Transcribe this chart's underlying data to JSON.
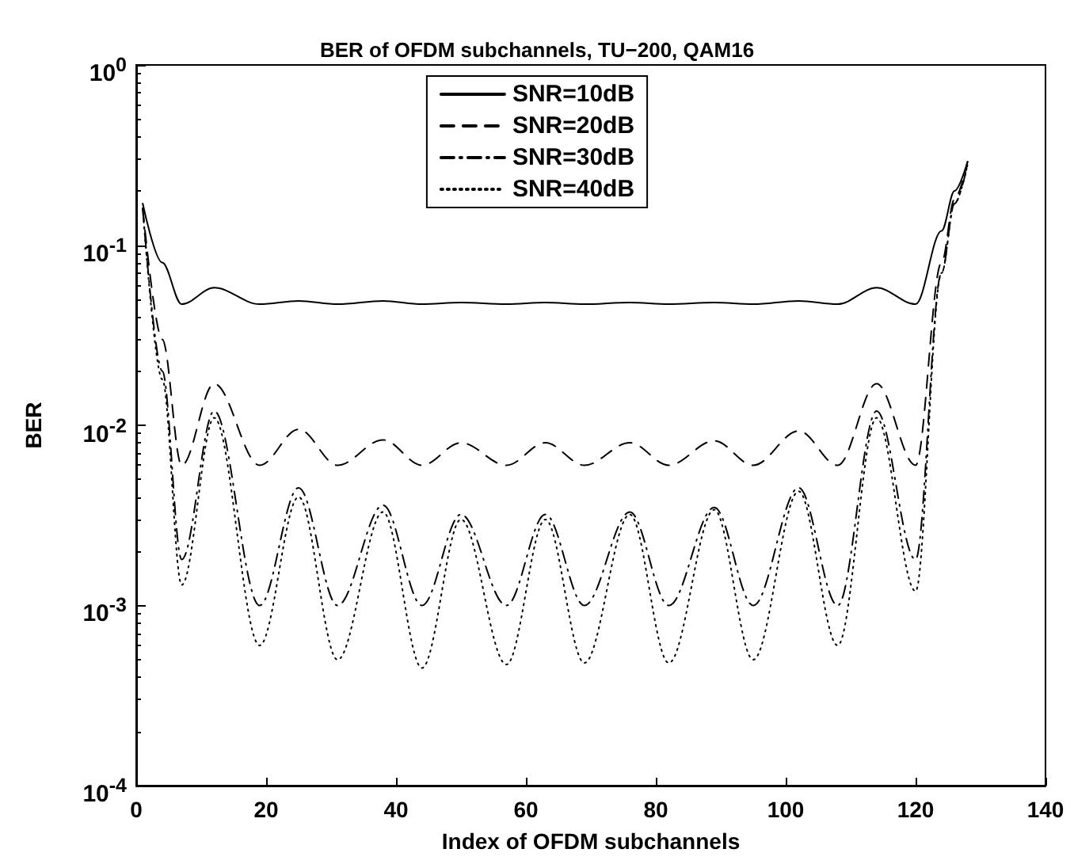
{
  "chart_data": {
    "type": "line",
    "title": "BER of OFDM subchannels, TU−200, QAM16",
    "xlabel": "Index of OFDM subchannels",
    "ylabel": "BER",
    "log": "y",
    "grid": false,
    "legend": "top",
    "marker": "none",
    "xlim": [
      0,
      140
    ],
    "xticks": [
      0,
      20,
      40,
      60,
      80,
      100,
      120,
      140
    ],
    "ylim": [
      0.0001,
      1
    ],
    "yticks": [
      {
        "value": 0.0001,
        "label": "10$^{-4}$"
      },
      {
        "value": 0.001,
        "label": "10$^{-3}$"
      },
      {
        "value": 0.01,
        "label": "10$^{-2}$"
      },
      {
        "value": 0.1,
        "label": "10$^{-1}$"
      },
      {
        "value": 1,
        "label": "10$^{0}$"
      }
    ],
    "x": [
      1,
      4,
      7,
      12,
      19,
      25,
      31,
      38,
      44,
      50,
      57,
      63,
      69,
      76,
      82,
      89,
      95,
      102,
      108,
      114,
      120,
      124,
      126,
      128
    ],
    "series": [
      {
        "name": "SNR=10dB",
        "color": "#000000",
        "line_style": "solid",
        "values": [
          0.17,
          0.08,
          0.047,
          0.058,
          0.047,
          0.049,
          0.047,
          0.049,
          0.047,
          0.048,
          0.047,
          0.048,
          0.047,
          0.048,
          0.047,
          0.048,
          0.047,
          0.049,
          0.047,
          0.058,
          0.047,
          0.12,
          0.2,
          0.29
        ]
      },
      {
        "name": "SNR=20dB",
        "color": "#000000",
        "line_style": "dashed",
        "values": [
          0.16,
          0.03,
          0.006,
          0.017,
          0.006,
          0.0095,
          0.006,
          0.0083,
          0.006,
          0.008,
          0.006,
          0.008,
          0.006,
          0.008,
          0.006,
          0.0082,
          0.006,
          0.0093,
          0.006,
          0.017,
          0.006,
          0.08,
          0.18,
          0.29
        ]
      },
      {
        "name": "SNR=30dB",
        "color": "#000000",
        "line_style": "dashdot",
        "values": [
          0.16,
          0.02,
          0.0018,
          0.012,
          0.001,
          0.0045,
          0.001,
          0.0036,
          0.001,
          0.0032,
          0.001,
          0.0032,
          0.001,
          0.0033,
          0.001,
          0.0035,
          0.001,
          0.0045,
          0.001,
          0.012,
          0.0018,
          0.07,
          0.17,
          0.28
        ]
      },
      {
        "name": "SNR=40dB",
        "color": "#000000",
        "line_style": "dotted",
        "values": [
          0.16,
          0.018,
          0.0013,
          0.011,
          0.0006,
          0.004,
          0.0005,
          0.0033,
          0.00045,
          0.003,
          0.00047,
          0.003,
          0.00048,
          0.0032,
          0.00048,
          0.0034,
          0.0005,
          0.0043,
          0.0006,
          0.011,
          0.0012,
          0.07,
          0.17,
          0.28
        ]
      }
    ]
  }
}
